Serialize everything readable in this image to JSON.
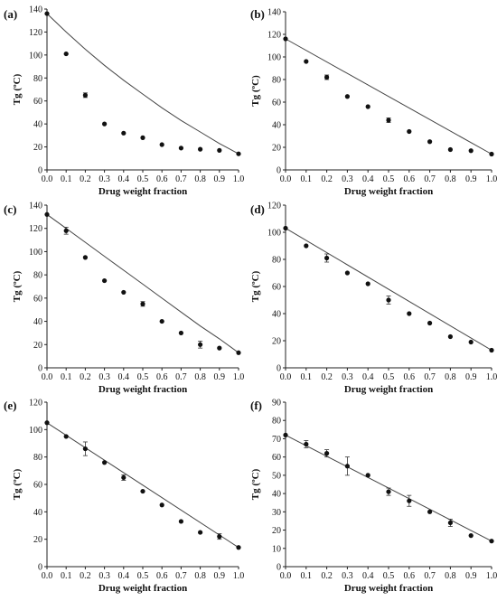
{
  "chart_data": [
    {
      "type": "scatter",
      "panel_label": "(a)",
      "xlabel": "Drug weight fraction",
      "ylabel": "Tg (ºC)",
      "xlim": [
        0,
        1
      ],
      "ylim": [
        0,
        140
      ],
      "xticks": [
        "0.0",
        "0.1",
        "0.2",
        "0.3",
        "0.4",
        "0.5",
        "0.6",
        "0.7",
        "0.8",
        "0.9",
        "1.0"
      ],
      "yticks": [
        "0",
        "20",
        "40",
        "60",
        "80",
        "100",
        "120",
        "140"
      ],
      "x": [
        0,
        0.1,
        0.2,
        0.3,
        0.4,
        0.5,
        0.6,
        0.7,
        0.8,
        0.9,
        1.0
      ],
      "y": [
        136,
        101,
        65,
        40,
        32,
        28,
        22,
        19,
        18,
        17,
        14
      ],
      "err": [
        0,
        0,
        2,
        0,
        0,
        0,
        0,
        0,
        0,
        0,
        0
      ],
      "fit_line": [
        [
          0,
          136
        ],
        [
          0.1,
          120
        ],
        [
          0.2,
          105
        ],
        [
          0.3,
          91
        ],
        [
          0.4,
          78
        ],
        [
          0.5,
          66
        ],
        [
          0.6,
          54
        ],
        [
          0.7,
          43
        ],
        [
          0.8,
          33
        ],
        [
          0.9,
          23
        ],
        [
          1.0,
          14
        ]
      ]
    },
    {
      "type": "scatter",
      "panel_label": "(b)",
      "xlabel": "Drug weight fraction",
      "ylabel": "Tg (ºC)",
      "xlim": [
        0,
        1
      ],
      "ylim": [
        0,
        140
      ],
      "xticks": [
        "0.0",
        "0.1",
        "0.2",
        "0.3",
        "0.4",
        "0.5",
        "0.6",
        "0.7",
        "0.8",
        "0.9",
        "1.0"
      ],
      "yticks": [
        "0",
        "20",
        "40",
        "60",
        "80",
        "100",
        "120",
        "140"
      ],
      "x": [
        0,
        0.1,
        0.2,
        0.3,
        0.4,
        0.5,
        0.6,
        0.7,
        0.8,
        0.9,
        1.0
      ],
      "y": [
        116,
        96,
        82,
        65,
        56,
        44,
        34,
        25,
        18,
        17,
        14
      ],
      "err": [
        0,
        0,
        2,
        0,
        0,
        2,
        0,
        0,
        0,
        0,
        0
      ],
      "fit_line": [
        [
          0,
          116
        ],
        [
          1.0,
          14
        ]
      ]
    },
    {
      "type": "scatter",
      "panel_label": "(c)",
      "xlabel": "Drug weight fraction",
      "ylabel": "Tg (ºC)",
      "xlim": [
        0,
        1
      ],
      "ylim": [
        0,
        140
      ],
      "xticks": [
        "0.0",
        "0.1",
        "0.2",
        "0.3",
        "0.4",
        "0.5",
        "0.6",
        "0.7",
        "0.8",
        "0.9",
        "1.0"
      ],
      "yticks": [
        "0",
        "20",
        "40",
        "60",
        "80",
        "100",
        "120",
        "140"
      ],
      "x": [
        0,
        0.1,
        0.2,
        0.3,
        0.4,
        0.5,
        0.6,
        0.7,
        0.8,
        0.9,
        1.0
      ],
      "y": [
        132,
        118,
        95,
        75,
        65,
        55,
        40,
        30,
        20,
        17,
        13
      ],
      "err": [
        0,
        3,
        0,
        0,
        0,
        2,
        0,
        0,
        3,
        0,
        0
      ],
      "fit_line": [
        [
          0,
          132
        ],
        [
          0.1,
          120
        ],
        [
          0.2,
          108
        ],
        [
          0.3,
          96
        ],
        [
          0.4,
          84
        ],
        [
          0.5,
          72
        ],
        [
          0.6,
          60
        ],
        [
          0.7,
          48
        ],
        [
          0.8,
          36
        ],
        [
          0.9,
          25
        ],
        [
          1.0,
          13
        ]
      ]
    },
    {
      "type": "scatter",
      "panel_label": "(d)",
      "xlabel": "Drug weight fraction",
      "ylabel": "Tg (ºC)",
      "xlim": [
        0,
        1
      ],
      "ylim": [
        0,
        120
      ],
      "xticks": [
        "0.0",
        "0.1",
        "0.2",
        "0.3",
        "0.4",
        "0.5",
        "0.6",
        "0.7",
        "0.8",
        "0.9",
        "1.0"
      ],
      "yticks": [
        "0",
        "20",
        "40",
        "60",
        "80",
        "100",
        "120"
      ],
      "x": [
        0,
        0.1,
        0.2,
        0.3,
        0.4,
        0.5,
        0.6,
        0.7,
        0.8,
        0.9,
        1.0
      ],
      "y": [
        103,
        90,
        81,
        70,
        62,
        50,
        40,
        33,
        23,
        19,
        13
      ],
      "err": [
        0,
        0,
        3,
        0,
        0,
        3,
        0,
        0,
        0,
        0,
        0
      ],
      "fit_line": [
        [
          0,
          103
        ],
        [
          1.0,
          13
        ]
      ]
    },
    {
      "type": "scatter",
      "panel_label": "(e)",
      "xlabel": "Drug weight fraction",
      "ylabel": "Tg (ºC)",
      "xlim": [
        0,
        1
      ],
      "ylim": [
        0,
        120
      ],
      "xticks": [
        "0.0",
        "0.1",
        "0.2",
        "0.3",
        "0.4",
        "0.5",
        "0.6",
        "0.7",
        "0.8",
        "0.9",
        "1.0"
      ],
      "yticks": [
        "0",
        "20",
        "40",
        "60",
        "80",
        "100",
        "120"
      ],
      "x": [
        0,
        0.1,
        0.2,
        0.3,
        0.4,
        0.5,
        0.6,
        0.7,
        0.8,
        0.9,
        1.0
      ],
      "y": [
        105,
        95,
        86,
        76,
        65,
        55,
        45,
        33,
        25,
        22,
        14
      ],
      "err": [
        0,
        0,
        5,
        0,
        2,
        0,
        0,
        0,
        0,
        2,
        0
      ],
      "fit_line": [
        [
          0,
          105
        ],
        [
          1.0,
          14
        ]
      ]
    },
    {
      "type": "scatter",
      "panel_label": "(f)",
      "xlabel": "Drug weight fraction",
      "ylabel": "Tg (ºC)",
      "xlim": [
        0,
        1
      ],
      "ylim": [
        0,
        90
      ],
      "xticks": [
        "0.0",
        "0.1",
        "0.2",
        "0.3",
        "0.4",
        "0.5",
        "0.6",
        "0.7",
        "0.8",
        "0.9",
        "1.0"
      ],
      "yticks": [
        "0",
        "10",
        "20",
        "30",
        "40",
        "50",
        "60",
        "70",
        "80",
        "90"
      ],
      "x": [
        0,
        0.1,
        0.2,
        0.3,
        0.4,
        0.5,
        0.6,
        0.7,
        0.8,
        0.9,
        1.0
      ],
      "y": [
        72,
        67,
        62,
        55,
        50,
        41,
        36,
        30,
        24,
        17,
        14
      ],
      "err": [
        0,
        2,
        2,
        5,
        0,
        2,
        3,
        0,
        2,
        0,
        0
      ],
      "fit_line": [
        [
          0,
          72
        ],
        [
          1.0,
          14
        ]
      ]
    }
  ]
}
